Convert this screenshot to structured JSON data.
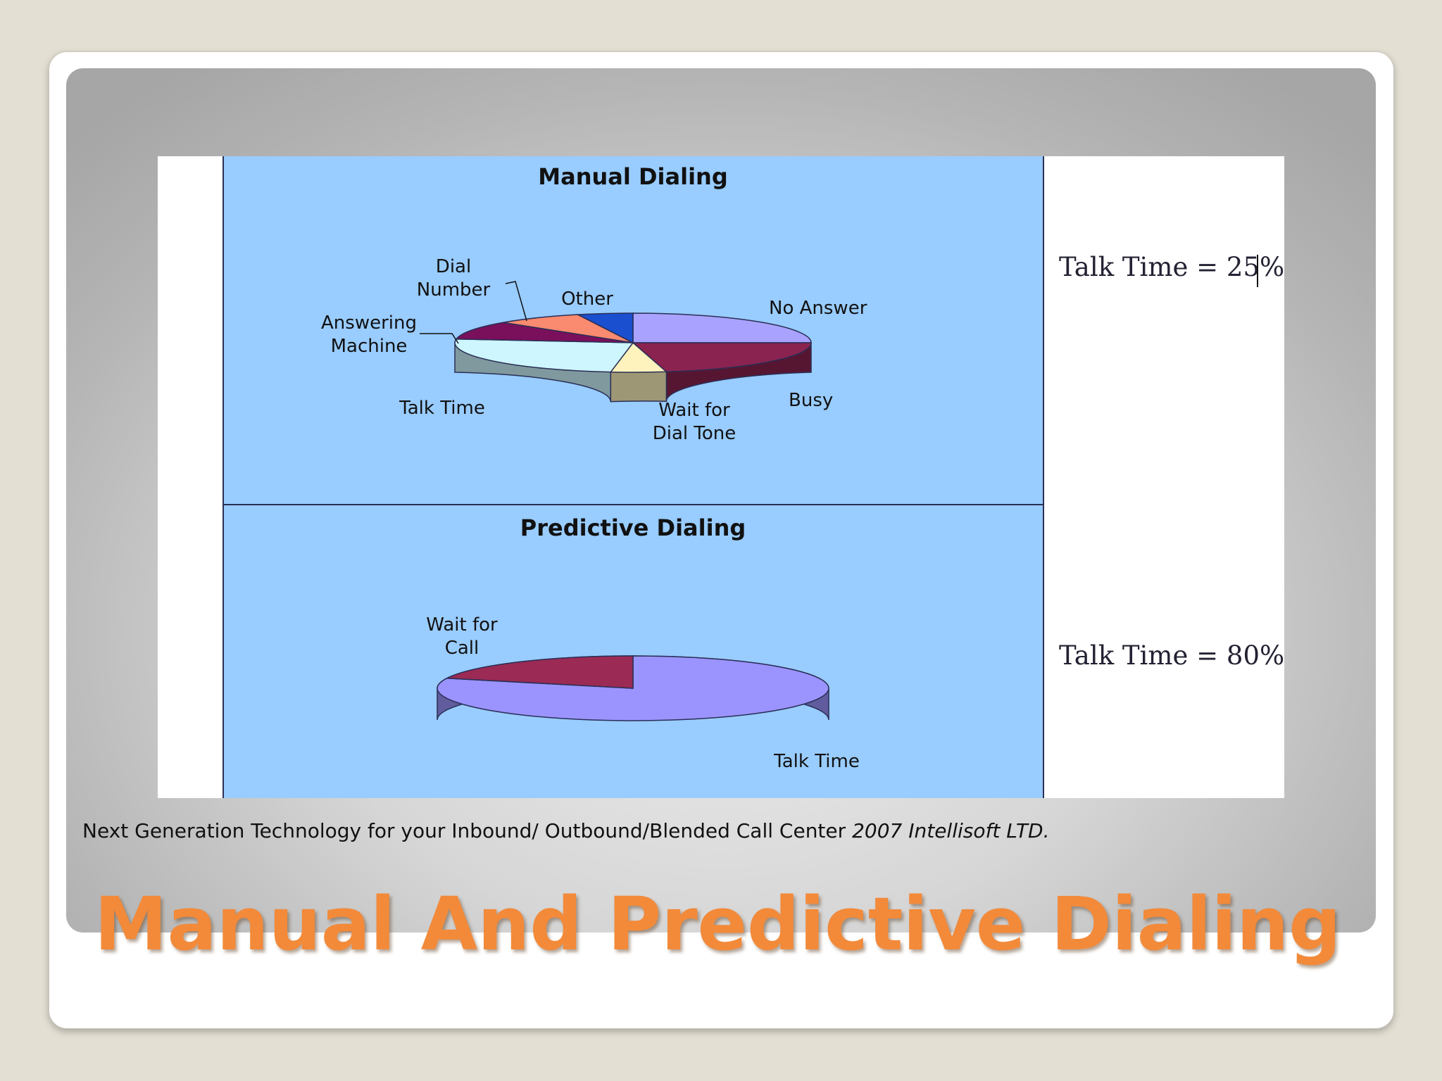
{
  "caption": {
    "text": "Next Generation Technology for your Inbound/ Outbound/Blended Call Center",
    "italic": "2007 Intellisoft LTD."
  },
  "slide_title": "Manual And Predictive Dialing",
  "colors": {
    "panel_blue": "#99ccff",
    "title_orange": "#f28a3a"
  },
  "chart_data": [
    {
      "type": "pie",
      "title": "Manual Dialing",
      "side_note": "Talk Time = 25%",
      "slices": [
        {
          "label": "No Answer",
          "value": 25,
          "color": "#a9a3ff"
        },
        {
          "label": "Busy",
          "value": 22,
          "color": "#8b2350"
        },
        {
          "label": "Wait for Dial Tone",
          "value": 5,
          "color": "#fff3bd"
        },
        {
          "label": "Talk Time",
          "value": 25,
          "color": "#cdf6ff"
        },
        {
          "label": "Answering Machine",
          "value": 10,
          "color": "#7a0f5c"
        },
        {
          "label": "Dial Number",
          "value": 8,
          "color": "#fa8a70"
        },
        {
          "label": "Other",
          "value": 5,
          "color": "#1a4fd0"
        }
      ]
    },
    {
      "type": "pie",
      "title": "Predictive Dialing",
      "side_note": "Talk Time = 80%",
      "slices": [
        {
          "label": "Talk Time",
          "value": 80,
          "color": "#9b94ff"
        },
        {
          "label": "Wait for Call",
          "value": 20,
          "color": "#9b2a55"
        }
      ]
    }
  ]
}
